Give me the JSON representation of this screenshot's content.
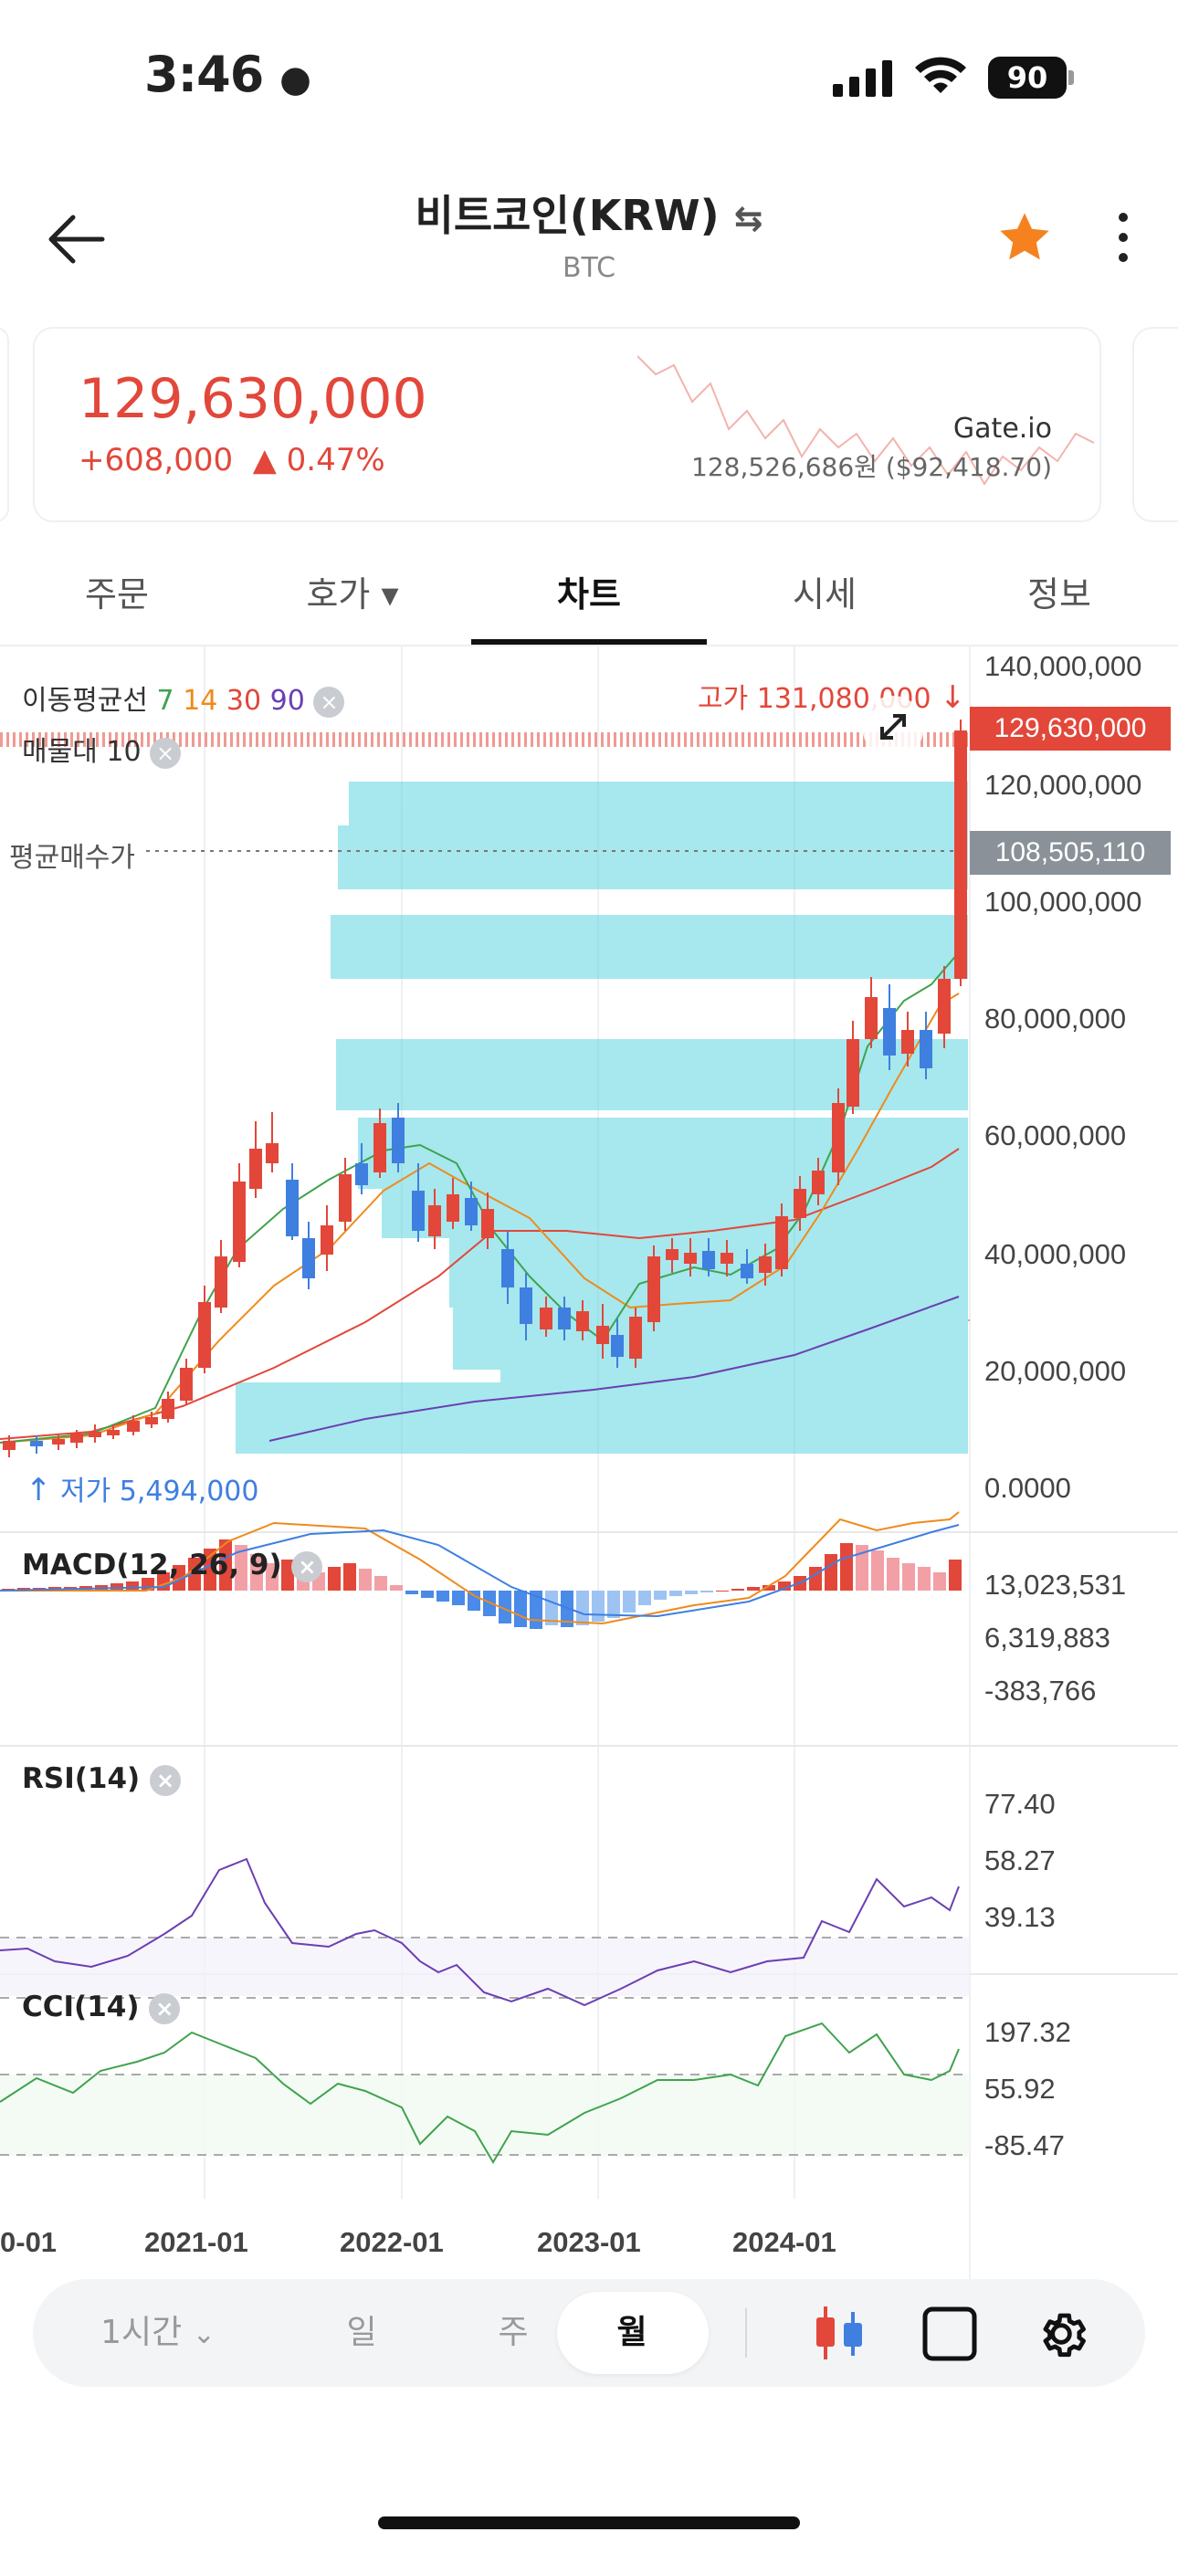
{
  "status_bar": {
    "time": "3:46",
    "battery": "90"
  },
  "header": {
    "title": "비트코인(KRW)",
    "subtitle": "BTC",
    "swap_icon": "⇆"
  },
  "ticker": {
    "price": "129,630,000",
    "change_amount": "+608,000",
    "change_percent": "▲ 0.47%",
    "exchange_name": "Gate.io",
    "exchange_price": "128,526,686원 ($92,418.70)"
  },
  "tabs": [
    {
      "label": "주문"
    },
    {
      "label": "호가 ▾"
    },
    {
      "label": "차트"
    },
    {
      "label": "시세"
    },
    {
      "label": "정보"
    }
  ],
  "active_tab": "차트",
  "chart": {
    "ma_label": "이동평균선",
    "ma_periods": [
      "7",
      "14",
      "30",
      "90"
    ],
    "ma_colors": [
      "#3fa34d",
      "#f08a1c",
      "#e2473a",
      "#6b3fb3"
    ],
    "volume_profile_label": "매물대",
    "volume_profile_value": "10",
    "high_label": "고가 131,080,000",
    "low_label": "저가 5,494,000",
    "avg_buy_label": "평균매수가",
    "current_price_tag": "129,630,000",
    "avg_price_tag": "108,505,110",
    "y_axis": [
      "140,000,000",
      "120,000,000",
      "100,000,000",
      "80,000,000",
      "60,000,000",
      "40,000,000",
      "20,000,000",
      "0.0000"
    ],
    "x_axis": [
      "0-01",
      "2021-01",
      "2022-01",
      "2023-01",
      "2024-01"
    ]
  },
  "macd": {
    "title": "MACD(12, 26, 9)",
    "axis": [
      "13,023,531",
      "6,319,883",
      "-383,766"
    ]
  },
  "rsi": {
    "title": "RSI(14)",
    "axis": [
      "77.40",
      "58.27",
      "39.13"
    ]
  },
  "cci": {
    "title": "CCI(14)",
    "axis": [
      "197.32",
      "55.92",
      "-85.47"
    ]
  },
  "bottom_bar": {
    "interval": "1시간",
    "day": "일",
    "week": "주",
    "month": "월"
  },
  "chart_data": {
    "type": "candlestick",
    "series": [
      {
        "name": "7",
        "color": "#3fa34d"
      },
      {
        "name": "14",
        "color": "#f08a1c"
      },
      {
        "name": "30",
        "color": "#e2473a"
      },
      {
        "name": "90",
        "color": "#6b3fb3"
      }
    ],
    "ylim": [
      0,
      140000000
    ],
    "high": 131080000,
    "low": 5494000,
    "last": 129630000,
    "avg_buy": 108505110
  }
}
